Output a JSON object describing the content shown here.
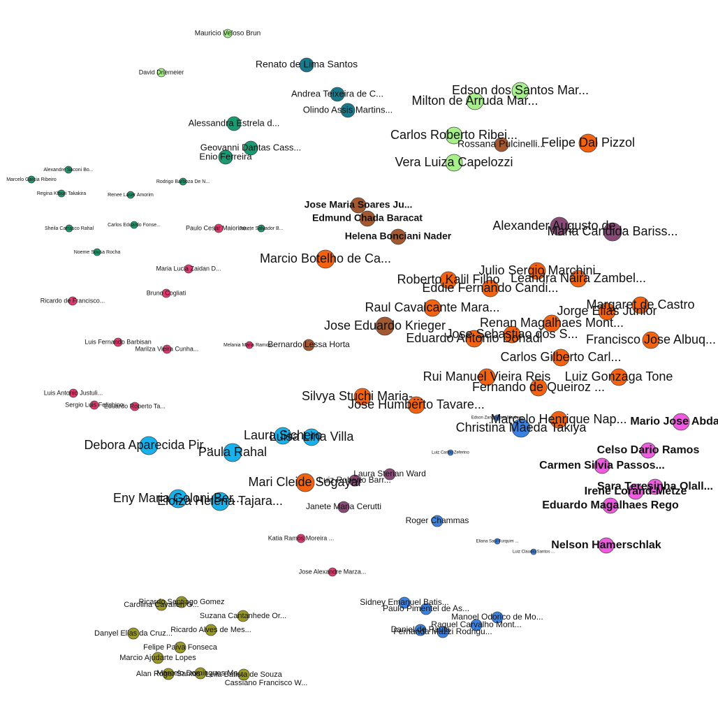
{
  "nodes": [
    {
      "label": "Mauricio Veloso Brun",
      "color": "#a6f08a"
    },
    {
      "label": "David Driemeier",
      "color": "#a6f08a"
    },
    {
      "label": "Renato de Lima Santos",
      "color": "#167a8c"
    },
    {
      "label": "Andrea Teixeira de C...",
      "color": "#167a8c"
    },
    {
      "label": "Olindo Assis Martins...",
      "color": "#167a8c"
    },
    {
      "label": "Edson dos Santos Mar...",
      "color": "#a6f08a"
    },
    {
      "label": "Milton de Arruda Mar...",
      "color": "#a6f08a"
    },
    {
      "label": "Alessandra Estrela d...",
      "color": "#1a9a72"
    },
    {
      "label": "Carlos Roberto Ribei...",
      "color": "#a6f08a"
    },
    {
      "label": "Rossana Pulcinelli...",
      "color": "#a3582f"
    },
    {
      "label": "Felipe Dal Pizzol",
      "color": "#f5620f"
    },
    {
      "label": "Geovanni Dantas Cass...",
      "color": "#1a9a72"
    },
    {
      "label": "Enio Ferreira",
      "color": "#1a9a72"
    },
    {
      "label": "Vera Luiza Capelozzi",
      "color": "#a6f08a"
    },
    {
      "label": "Alexandre Saconi Bo...",
      "color": "#1a9a72"
    },
    {
      "label": "Marcelo Garcia Ribeiro",
      "color": "#1a9a72"
    },
    {
      "label": "Rodrigo Barboza De N...",
      "color": "#1a9a72"
    },
    {
      "label": "Regina Kfouri Takakira",
      "color": "#1a9a72"
    },
    {
      "label": "Renee Laser Amorim",
      "color": "#1a9a72"
    },
    {
      "label": "Jose Maria Soares Ju...",
      "color": "#a3582f"
    },
    {
      "label": "Edmund Chada Baracat",
      "color": "#a3582f"
    },
    {
      "label": "Alexander Augusto de...",
      "color": "#8a4a78"
    },
    {
      "label": "Maria Candida Bariss...",
      "color": "#8a4a78"
    },
    {
      "label": "Sheila Carrasco Rahal",
      "color": "#1a9a72"
    },
    {
      "label": "Carlos Eduardo Fonse...",
      "color": "#1a9a72"
    },
    {
      "label": "Paulo Cesar Maiorino...",
      "color": "#e23a6e"
    },
    {
      "label": "Janete Salvador B...",
      "color": "#1a9a72"
    },
    {
      "label": "Helena Bonciani Nader",
      "color": "#a3582f"
    },
    {
      "label": "Noeme Sousa Rocha",
      "color": "#1a9a72"
    },
    {
      "label": "Marcio Botelho de Ca...",
      "color": "#f5620f"
    },
    {
      "label": "Maria Lucia Zaidan D...",
      "color": "#e23a6e"
    },
    {
      "label": "Julio Sergio Marchini",
      "color": "#f5620f"
    },
    {
      "label": "Roberto Kalil Filho",
      "color": "#f5620f"
    },
    {
      "label": "Leandra Naira Zambel...",
      "color": "#f5620f"
    },
    {
      "label": "Eddie Fernando Candi...",
      "color": "#f5620f"
    },
    {
      "label": "Bruno Cogliati",
      "color": "#e23a6e"
    },
    {
      "label": "Ricardo de Francisco...",
      "color": "#e23a6e"
    },
    {
      "label": "Margaret de Castro",
      "color": "#f5620f"
    },
    {
      "label": "Raul Cavalcante Mara...",
      "color": "#f5620f"
    },
    {
      "label": "Jorge Elias Junior",
      "color": "#f5620f"
    },
    {
      "label": "Jose Eduardo Krieger",
      "color": "#a3582f"
    },
    {
      "label": "Renan Magalhaes Mont...",
      "color": "#f5620f"
    },
    {
      "label": "Jose Sebastiao dos S...",
      "color": "#f5620f"
    },
    {
      "label": "Eduardo Antonio Donadi",
      "color": "#f5620f"
    },
    {
      "label": "Francisco Jose Albuq...",
      "color": "#f5620f"
    },
    {
      "label": "Luis Fernando Barbisan",
      "color": "#e23a6e"
    },
    {
      "label": "Melania Maria Ramos...",
      "color": "#e23a6e"
    },
    {
      "label": "Bernardo Lessa Horta",
      "color": "#a3582f"
    },
    {
      "label": "Marilza Vieira Cunha...",
      "color": "#e23a6e"
    },
    {
      "label": "Carlos Gilberto Carl...",
      "color": "#f5620f"
    },
    {
      "label": "Rui Manuel Vieira Reis",
      "color": "#f5620f"
    },
    {
      "label": "Luiz Gonzaga Tone",
      "color": "#f5620f"
    },
    {
      "label": "Fernando de Queiroz ...",
      "color": "#f5620f"
    },
    {
      "label": "Luis Antonio Justuli...",
      "color": "#e23a6e"
    },
    {
      "label": "Silvya Stuchi Maria-...",
      "color": "#f5620f"
    },
    {
      "label": "Jose Humberto Tavare...",
      "color": "#f5620f"
    },
    {
      "label": "Sergio Luis Felisbino",
      "color": "#e23a6e"
    },
    {
      "label": "Eduardo Roberto Ta...",
      "color": "#e23a6e"
    },
    {
      "label": "Edson Zangiacomi Martinez",
      "color": "#3a82e2"
    },
    {
      "label": "Marcelo Henrique Nap...",
      "color": "#f5620f"
    },
    {
      "label": "Mario Jose Abdalla",
      "color": "#ee5ae0"
    },
    {
      "label": "Christina Maeda Takiya",
      "color": "#3a82e2"
    },
    {
      "label": "Laura Sichero",
      "color": "#15b2ee"
    },
    {
      "label": "Luisa Lina Villa",
      "color": "#15b2ee"
    },
    {
      "label": "Debora Aparecida Pir...",
      "color": "#15b2ee"
    },
    {
      "label": "Luiz Carlos Zeferino",
      "color": "#3a82e2"
    },
    {
      "label": "Paula Rahal",
      "color": "#15b2ee"
    },
    {
      "label": "Celso Dario Ramos",
      "color": "#ee5ae0"
    },
    {
      "label": "Carmen Silvia Passos...",
      "color": "#ee5ae0"
    },
    {
      "label": "Laura Sterian Ward",
      "color": "#8a4a78"
    },
    {
      "label": "Mari Cleide Sogayar",
      "color": "#f5620f"
    },
    {
      "label": "Luiz Roberto Barr...",
      "color": "#8a4a78"
    },
    {
      "label": "Sara Teresinha Olall...",
      "color": "#ee5ae0"
    },
    {
      "label": "Irene Lorand-Metze",
      "color": "#ee5ae0"
    },
    {
      "label": "Eny Maria Goloni-Ber...",
      "color": "#15b2ee"
    },
    {
      "label": "Eloiza Helena Tajara...",
      "color": "#15b2ee"
    },
    {
      "label": "Eduardo Magalhaes Rego",
      "color": "#ee5ae0"
    },
    {
      "label": "Janete Maria Cerutti",
      "color": "#8a4a78"
    },
    {
      "label": "Roger Chammas",
      "color": "#3a82e2"
    },
    {
      "label": "Katia Ramos Moreira ...",
      "color": "#e23a6e"
    },
    {
      "label": "Eliana Saul Furquim ...",
      "color": "#3a82e2"
    },
    {
      "label": "Nelson Hamerschlak",
      "color": "#ee5ae0"
    },
    {
      "label": "Luiz Claudio Santos ...",
      "color": "#3a82e2"
    },
    {
      "label": "Jose Alexandre Marza...",
      "color": "#e23a6e"
    },
    {
      "label": "Ricardo Santiago Gomez",
      "color": "#9a9a22"
    },
    {
      "label": "Carolina Cavalieri G...",
      "color": "#9a9a22"
    },
    {
      "label": "Sidney Emanuel Batis...",
      "color": "#3a82e2"
    },
    {
      "label": "Paulo Pimentel de As...",
      "color": "#3a82e2"
    },
    {
      "label": "Suzana Cantanhede Or...",
      "color": "#9a9a22"
    },
    {
      "label": "Manoel Odorico de Mo...",
      "color": "#3a82e2"
    },
    {
      "label": "Raquel Carvalho Mont...",
      "color": "#3a82e2"
    },
    {
      "label": "Ricardo Alves de Mes...",
      "color": "#9a9a22"
    },
    {
      "label": "Daniel de Paula",
      "color": "#3a82e2"
    },
    {
      "label": "Fernanda Mazzi Rodrigu...",
      "color": "#3a82e2"
    },
    {
      "label": "Danyel Elias da Cruz...",
      "color": "#9a9a22"
    },
    {
      "label": "Felipe Paiva Fonseca",
      "color": "#9a9a22"
    },
    {
      "label": "Marcio Ajudarte Lopes",
      "color": "#9a9a22"
    },
    {
      "label": "Alan Roger Santos",
      "color": "#9a9a22"
    },
    {
      "label": "Marcelo Domingues Ma...",
      "color": "#9a9a22"
    },
    {
      "label": "Leila Batista de Souza",
      "color": "#9a9a22"
    },
    {
      "label": "Cassiano Francisco W...",
      "color": "#9a9a22"
    }
  ]
}
